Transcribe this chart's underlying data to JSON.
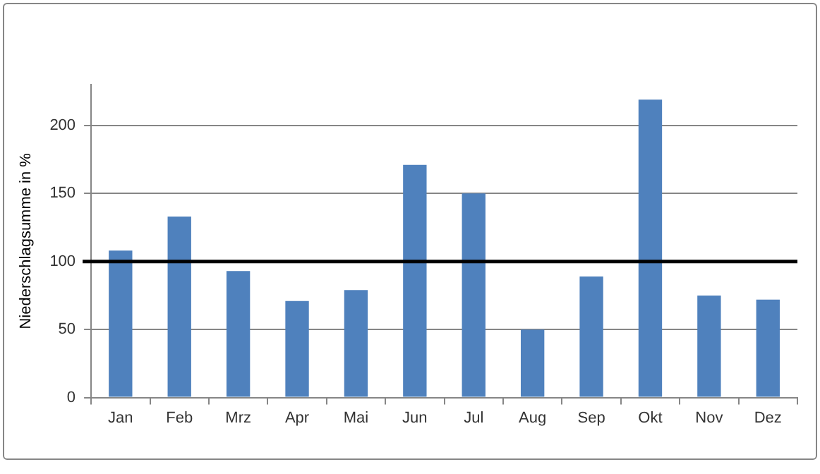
{
  "chart_data": {
    "type": "bar",
    "ylabel": "Niederschlagsumme in %",
    "categories": [
      "Jan",
      "Feb",
      "Mrz",
      "Apr",
      "Mai",
      "Jun",
      "Jul",
      "Aug",
      "Sep",
      "Okt",
      "Nov",
      "Dez"
    ],
    "values": [
      108,
      133,
      93,
      71,
      79,
      171,
      150,
      50,
      89,
      219,
      75,
      72
    ],
    "color": "#4f81bd",
    "ylim": [
      0,
      230
    ],
    "yticks": [
      0,
      50,
      100,
      150,
      200
    ],
    "grid": "y",
    "legend": false,
    "ref_lines": [
      {
        "axis": "y",
        "value": 100,
        "color": "#000000"
      }
    ]
  }
}
